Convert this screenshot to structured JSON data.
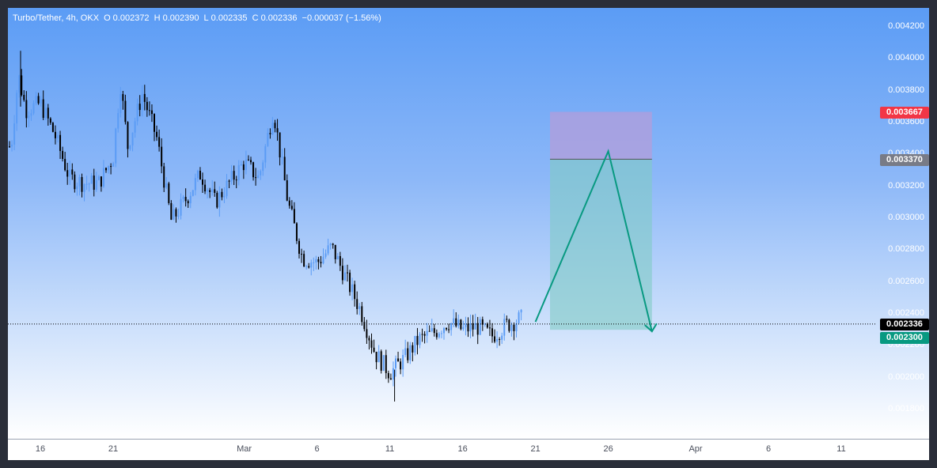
{
  "legend": {
    "symbol": "Turbo/Tether, 4h, OKX",
    "o_label": "O",
    "o_value": "0.002372",
    "h_label": "H",
    "h_value": "0.002390",
    "l_label": "L",
    "l_value": "0.002335",
    "c_label": "C",
    "c_value": "0.002336",
    "change": "−0.000037 (−1.56%)"
  },
  "colors": {
    "up": "#5b9cf5",
    "down": "#000000",
    "stop": "#f23645",
    "entry": "#787b86",
    "current": "#000000",
    "target": "#089981",
    "stop_zone": "#b39ddb",
    "target_zone": "#80cbc4",
    "projection": "#089981"
  },
  "price_tags": {
    "stop": "0.003667",
    "entry": "0.003370",
    "current": "0.002336",
    "target": "0.002300"
  },
  "chart_data": {
    "type": "candlestick",
    "title": "Turbo/Tether, 4h, OKX",
    "ylim": [
      0.00176,
      0.0042
    ],
    "yticks": [
      "0.004200",
      "0.004000",
      "0.003800",
      "0.003600",
      "0.003400",
      "0.003200",
      "0.003000",
      "0.002800",
      "0.002600",
      "0.002400",
      "0.002200",
      "0.002000",
      "0.001800"
    ],
    "xticks": [
      "16",
      "21",
      "Mar",
      "6",
      "11",
      "16",
      "21",
      "26",
      "Apr",
      "6",
      "11"
    ],
    "close_path": [
      [
        "Feb 14",
        0.00345
      ],
      [
        "Feb 14",
        0.0039
      ],
      [
        "Feb 15",
        0.00368
      ],
      [
        "Feb 16",
        0.00372
      ],
      [
        "Feb 17",
        0.00352
      ],
      [
        "Feb 18",
        0.00325
      ],
      [
        "Feb 19",
        0.00322
      ],
      [
        "Feb 20",
        0.00322
      ],
      [
        "Feb 21",
        0.00338
      ],
      [
        "Feb 21",
        0.00385
      ],
      [
        "Feb 22",
        0.00345
      ],
      [
        "Feb 23",
        0.00378
      ],
      [
        "Feb 24",
        0.0035
      ],
      [
        "Feb 25",
        0.00298
      ],
      [
        "Feb 26",
        0.00312
      ],
      [
        "Feb 27",
        0.00328
      ],
      [
        "Feb 28",
        0.0031
      ],
      [
        "Mar 1",
        0.00335
      ],
      [
        "Mar 2",
        0.00325
      ],
      [
        "Mar 3",
        0.00368
      ],
      [
        "Mar 4",
        0.0031
      ],
      [
        "Mar 5",
        0.00275
      ],
      [
        "Mar 6",
        0.00272
      ],
      [
        "Mar 7",
        0.00282
      ],
      [
        "Mar 8",
        0.00262
      ],
      [
        "Mar 9",
        0.00242
      ],
      [
        "Mar 10",
        0.00215
      ],
      [
        "Mar 11",
        0.00203
      ],
      [
        "Mar 12",
        0.00212
      ],
      [
        "Mar 13",
        0.00224
      ],
      [
        "Mar 14",
        0.00228
      ],
      [
        "Mar 15",
        0.00235
      ],
      [
        "Mar 16",
        0.0023
      ],
      [
        "Mar 17",
        0.00232
      ],
      [
        "Mar 18",
        0.00226
      ],
      [
        "Mar 19",
        0.00233
      ],
      [
        "Mar 20",
        0.00237
      ],
      [
        "Mar 20",
        0.002336
      ]
    ],
    "low": {
      "date": "Mar 11",
      "value": 0.00185
    },
    "high": {
      "date": "Feb 14",
      "value": 0.00405
    },
    "position": {
      "type": "short",
      "stop": 0.003667,
      "entry": 0.00337,
      "target": 0.0023,
      "start": "Mar 22",
      "end": "Mar 29"
    },
    "projection": [
      [
        "Mar 21",
        0.00235
      ],
      [
        "Mar 26",
        0.00342
      ],
      [
        "Mar 29",
        0.00229
      ]
    ],
    "current_price": 0.002336
  }
}
